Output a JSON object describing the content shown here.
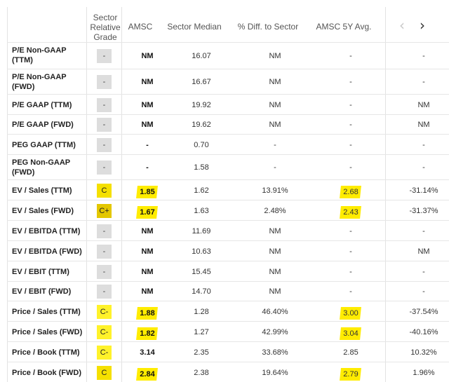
{
  "headers": {
    "grade": "Sector Relative Grade",
    "amsc": "AMSC",
    "median": "Sector Median",
    "diff": "% Diff. to Sector",
    "avg": "AMSC 5Y Avg."
  },
  "nav": {
    "prev": "‹",
    "next": "›",
    "prev_icon": "chevron-left-icon",
    "next_icon": "chevron-right-icon"
  },
  "rows": [
    {
      "metric": "P/E Non-GAAP (TTM)",
      "grade": "-",
      "amsc": "NM",
      "median": "16.07",
      "diff": "NM",
      "avg": "-",
      "last": "-"
    },
    {
      "metric": "P/E Non-GAAP (FWD)",
      "grade": "-",
      "amsc": "NM",
      "median": "16.67",
      "diff": "NM",
      "avg": "-",
      "last": "-"
    },
    {
      "metric": "P/E GAAP (TTM)",
      "grade": "-",
      "amsc": "NM",
      "median": "19.92",
      "diff": "NM",
      "avg": "-",
      "last": "NM"
    },
    {
      "metric": "P/E GAAP (FWD)",
      "grade": "-",
      "amsc": "NM",
      "median": "19.62",
      "diff": "NM",
      "avg": "-",
      "last": "NM"
    },
    {
      "metric": "PEG GAAP (TTM)",
      "grade": "-",
      "amsc": "-",
      "median": "0.70",
      "diff": "-",
      "avg": "-",
      "last": "-"
    },
    {
      "metric": "PEG Non-GAAP (FWD)",
      "grade": "-",
      "amsc": "-",
      "median": "1.58",
      "diff": "-",
      "avg": "-",
      "last": "-"
    },
    {
      "metric": "EV / Sales (TTM)",
      "grade": "C",
      "amsc": "1.85",
      "median": "1.62",
      "diff": "13.91%",
      "avg": "2.68",
      "last": "-31.14%"
    },
    {
      "metric": "EV / Sales (FWD)",
      "grade": "C+",
      "amsc": "1.67",
      "median": "1.63",
      "diff": "2.48%",
      "avg": "2.43",
      "last": "-31.37%"
    },
    {
      "metric": "EV / EBITDA (TTM)",
      "grade": "-",
      "amsc": "NM",
      "median": "11.69",
      "diff": "NM",
      "avg": "-",
      "last": "-"
    },
    {
      "metric": "EV / EBITDA (FWD)",
      "grade": "-",
      "amsc": "NM",
      "median": "10.63",
      "diff": "NM",
      "avg": "-",
      "last": "NM"
    },
    {
      "metric": "EV / EBIT (TTM)",
      "grade": "-",
      "amsc": "NM",
      "median": "15.45",
      "diff": "NM",
      "avg": "-",
      "last": "-"
    },
    {
      "metric": "EV / EBIT (FWD)",
      "grade": "-",
      "amsc": "NM",
      "median": "14.70",
      "diff": "NM",
      "avg": "-",
      "last": "-"
    },
    {
      "metric": "Price / Sales (TTM)",
      "grade": "C-",
      "amsc": "1.88",
      "median": "1.28",
      "diff": "46.40%",
      "avg": "3.00",
      "last": "-37.54%"
    },
    {
      "metric": "Price / Sales (FWD)",
      "grade": "C-",
      "amsc": "1.82",
      "median": "1.27",
      "diff": "42.99%",
      "avg": "3.04",
      "last": "-40.16%"
    },
    {
      "metric": "Price / Book (TTM)",
      "grade": "C-",
      "amsc": "3.14",
      "median": "2.35",
      "diff": "33.68%",
      "avg": "2.85",
      "last": "10.32%"
    },
    {
      "metric": "Price / Book (FWD)",
      "grade": "C",
      "amsc": "2.84",
      "median": "2.38",
      "diff": "19.64%",
      "avg": "2.79",
      "last": "1.96%"
    }
  ],
  "highlights": {
    "amsc": [
      6,
      7,
      12,
      13,
      15
    ],
    "avg": [
      6,
      7,
      12,
      13,
      15
    ]
  },
  "colors": {
    "highlight": "#ffec00",
    "grade_c": "#f5e000",
    "grade_cplus": "#e3c700",
    "grade_cminus": "#fff22a",
    "grade_none": "#dddddd"
  }
}
